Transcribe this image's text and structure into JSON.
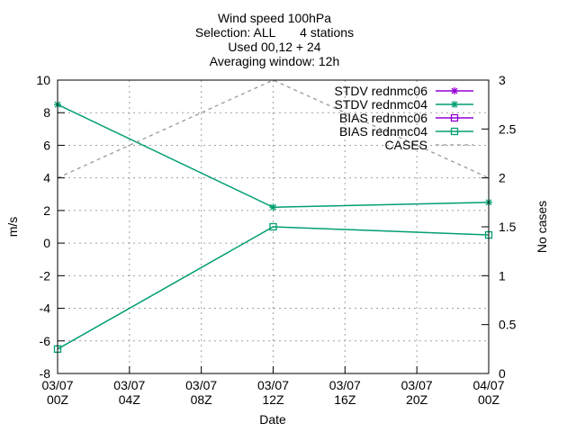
{
  "chart_data": {
    "type": "line",
    "title": [
      "Wind speed 100hPa",
      "Selection: ALL       4 stations",
      "Used 00,12 + 24",
      "Averaging window: 12h"
    ],
    "xlabel": "Date",
    "ylabel": "m/s",
    "y2label": "No cases",
    "x_ticks": [
      {
        "line1": "03/07",
        "line2": "00Z",
        "x": 0
      },
      {
        "line1": "03/07",
        "line2": "04Z",
        "x": 4
      },
      {
        "line1": "03/07",
        "line2": "08Z",
        "x": 8
      },
      {
        "line1": "03/07",
        "line2": "12Z",
        "x": 12
      },
      {
        "line1": "03/07",
        "line2": "16Z",
        "x": 16
      },
      {
        "line1": "03/07",
        "line2": "20Z",
        "x": 20
      },
      {
        "line1": "04/07",
        "line2": "00Z",
        "x": 24
      }
    ],
    "xlim": [
      0,
      24
    ],
    "ylim": [
      -8,
      10
    ],
    "y_ticks": [
      -8,
      -6,
      -4,
      -2,
      0,
      2,
      4,
      6,
      8,
      10
    ],
    "y2lim": [
      0,
      3
    ],
    "y2_ticks": [
      "0",
      "0.5",
      "1",
      "1.5",
      "2",
      "2.5",
      "3"
    ],
    "grid": true,
    "legend_position": "top-right",
    "series": [
      {
        "name": "STDV rednmc06",
        "axis": "y",
        "color": "#9400d3",
        "marker": "star",
        "dash": false,
        "x": [],
        "y": []
      },
      {
        "name": "STDV rednmc04",
        "axis": "y",
        "color": "#009e73",
        "marker": "star",
        "dash": false,
        "x": [
          0,
          12,
          24
        ],
        "y": [
          8.5,
          2.2,
          2.5
        ]
      },
      {
        "name": "BIAS rednmc06",
        "axis": "y",
        "color": "#9400d3",
        "marker": "square",
        "dash": false,
        "x": [],
        "y": []
      },
      {
        "name": "BIAS rednmc04",
        "axis": "y",
        "color": "#009e73",
        "marker": "square",
        "dash": false,
        "x": [
          0,
          12,
          24
        ],
        "y": [
          -6.5,
          1.0,
          0.5
        ]
      },
      {
        "name": "CASES",
        "axis": "y2",
        "color": "#999999",
        "marker": "none",
        "dash": true,
        "x": [
          0,
          12,
          24
        ],
        "y": [
          2,
          3,
          2
        ]
      }
    ]
  }
}
